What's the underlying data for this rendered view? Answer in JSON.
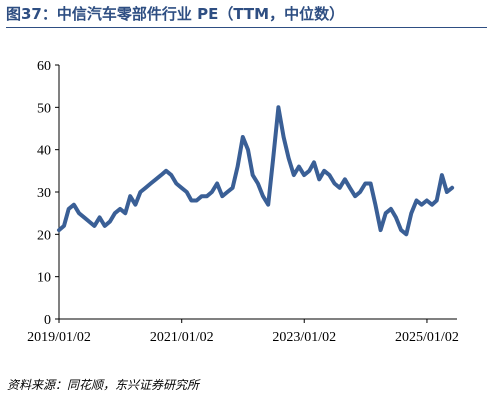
{
  "title": "图37：中信汽车零部件行业 PE（TTM，中位数）",
  "source": "资料来源：同花顺，东兴证券研究所",
  "colors": {
    "title": "#2e4e82",
    "line": "#3a5f96"
  },
  "chart_data": {
    "type": "line",
    "title": "图37：中信汽车零部件行业 PE（TTM，中位数）",
    "xlabel": "",
    "ylabel": "",
    "ylim": [
      0,
      60
    ],
    "yticks": [
      "0",
      "10",
      "20",
      "30",
      "40",
      "50",
      "60"
    ],
    "xticks": [
      "2019/01/02",
      "2021/01/02",
      "2023/01/02",
      "2025/01/02"
    ],
    "xlim": [
      "2019/01/02",
      "2025/06/30"
    ],
    "grid": false,
    "legend": "none",
    "series": [
      {
        "x": [
          "2019-01-02",
          "2019-02-01",
          "2019-03-01",
          "2019-04-01",
          "2019-05-01",
          "2019-06-01",
          "2019-07-01",
          "2019-08-01",
          "2019-09-01",
          "2019-10-01",
          "2019-11-01",
          "2019-12-01",
          "2020-01-01",
          "2020-02-01",
          "2020-03-01",
          "2020-04-01",
          "2020-05-01",
          "2020-06-01",
          "2020-07-01",
          "2020-08-01",
          "2020-09-01",
          "2020-10-01",
          "2020-11-01",
          "2020-12-01",
          "2021-01-01",
          "2021-02-01",
          "2021-03-01",
          "2021-04-01",
          "2021-05-01",
          "2021-06-01",
          "2021-07-01",
          "2021-08-01",
          "2021-09-01",
          "2021-10-01",
          "2021-11-01",
          "2021-12-01",
          "2022-01-01",
          "2022-02-01",
          "2022-03-01",
          "2022-04-01",
          "2022-05-01",
          "2022-06-01",
          "2022-07-01",
          "2022-08-01",
          "2022-09-01",
          "2022-10-01",
          "2022-11-01",
          "2022-12-01",
          "2023-01-01",
          "2023-02-01",
          "2023-03-01",
          "2023-04-01",
          "2023-05-01",
          "2023-06-01",
          "2023-07-01",
          "2023-08-01",
          "2023-09-01",
          "2023-10-01",
          "2023-11-01",
          "2023-12-01",
          "2024-01-01",
          "2024-02-01",
          "2024-03-01",
          "2024-04-01",
          "2024-05-01",
          "2024-06-01",
          "2024-07-01",
          "2024-08-01",
          "2024-09-01",
          "2024-10-01",
          "2024-11-01",
          "2024-12-01",
          "2025-01-01",
          "2025-02-01",
          "2025-03-01",
          "2025-04-01",
          "2025-05-01",
          "2025-06-01"
        ],
        "values": [
          21,
          22,
          26,
          27,
          25,
          24,
          23,
          22,
          24,
          22,
          23,
          25,
          26,
          25,
          29,
          27,
          30,
          31,
          32,
          33,
          34,
          35,
          34,
          32,
          31,
          30,
          28,
          28,
          29,
          29,
          30,
          32,
          29,
          30,
          31,
          36,
          43,
          40,
          34,
          32,
          29,
          27,
          38,
          50,
          43,
          38,
          34,
          36,
          34,
          35,
          37,
          33,
          35,
          34,
          32,
          31,
          33,
          31,
          29,
          30,
          32,
          32,
          27,
          21,
          25,
          26,
          24,
          21,
          20,
          25,
          28,
          27,
          28,
          27,
          28,
          34,
          30,
          31
        ]
      }
    ]
  }
}
